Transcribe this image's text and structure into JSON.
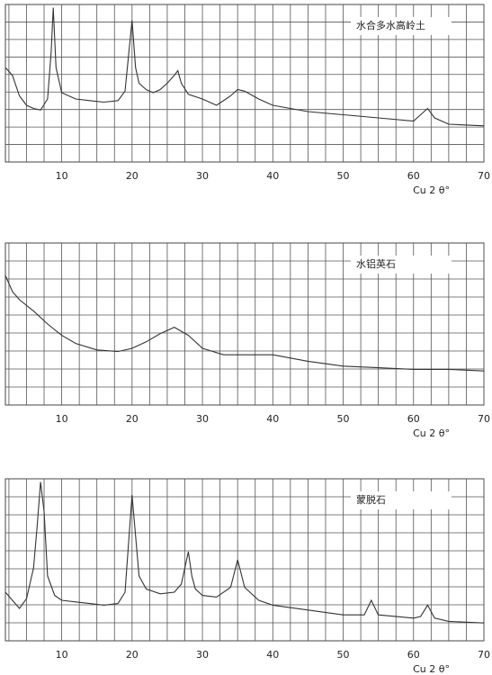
{
  "chart_data": [
    {
      "type": "line",
      "title": "水合多水高岭土",
      "xlabel": "Cu 2 θ°",
      "color": "#333333",
      "grid": true,
      "xlim": [
        2,
        70
      ],
      "ylim": [
        0,
        10
      ],
      "xticks": [
        10,
        20,
        30,
        40,
        50,
        60,
        70
      ],
      "x": [
        2,
        3,
        4,
        5,
        6,
        7,
        8,
        8.5,
        8.8,
        9.2,
        10,
        12,
        14,
        16,
        18,
        19,
        20,
        20.5,
        21,
        22,
        23,
        24,
        25,
        26,
        26.5,
        27,
        28,
        30,
        32,
        34,
        35,
        36,
        38,
        40,
        45,
        50,
        55,
        60,
        61,
        62,
        63,
        65,
        70
      ],
      "values": [
        6,
        5.5,
        4.2,
        3.6,
        3.4,
        3.3,
        4,
        7,
        9.8,
        6,
        4.4,
        4,
        3.9,
        3.8,
        3.9,
        4.5,
        9,
        6,
        5,
        4.6,
        4.4,
        4.6,
        5,
        5.5,
        5.8,
        5,
        4.3,
        4,
        3.6,
        4.2,
        4.6,
        4.5,
        4,
        3.6,
        3.2,
        3,
        2.8,
        2.6,
        3,
        3.4,
        2.8,
        2.4,
        2.3
      ]
    },
    {
      "type": "line",
      "title": "水铝英石",
      "xlabel": "Cu 2 θ°",
      "color": "#333333",
      "grid": true,
      "xlim": [
        2,
        70
      ],
      "ylim": [
        0,
        10
      ],
      "xticks": [
        10,
        20,
        30,
        40,
        50,
        60,
        70
      ],
      "x": [
        2,
        3,
        4,
        6,
        8,
        10,
        12,
        15,
        18,
        20,
        22,
        24,
        26,
        28,
        30,
        33,
        36,
        40,
        45,
        50,
        55,
        60,
        65,
        70
      ],
      "values": [
        8,
        7,
        6.5,
        5.8,
        5,
        4.3,
        3.8,
        3.4,
        3.3,
        3.5,
        3.9,
        4.4,
        4.8,
        4.3,
        3.5,
        3.1,
        3.1,
        3.1,
        2.7,
        2.4,
        2.3,
        2.2,
        2.2,
        2.1
      ]
    },
    {
      "type": "line",
      "title": "蒙脱石",
      "xlabel": "Cu 2 θ°",
      "color": "#333333",
      "grid": true,
      "xlim": [
        2,
        70
      ],
      "ylim": [
        0,
        10
      ],
      "xticks": [
        10,
        20,
        30,
        40,
        50,
        60,
        70
      ],
      "x": [
        2,
        3,
        4,
        5,
        6,
        6.5,
        7,
        7.5,
        8,
        9,
        10,
        12,
        14,
        16,
        18,
        19,
        19.5,
        20,
        20.5,
        21,
        22,
        24,
        26,
        27,
        28,
        28.5,
        29,
        30,
        32,
        34,
        35,
        36,
        38,
        40,
        45,
        50,
        53,
        54,
        55,
        60,
        61,
        62,
        63,
        65,
        70
      ],
      "values": [
        3,
        2.5,
        2,
        2.6,
        4.5,
        7,
        9.8,
        8,
        4,
        2.8,
        2.5,
        2.4,
        2.3,
        2.2,
        2.3,
        3,
        6,
        9,
        6.5,
        4,
        3.2,
        2.9,
        3,
        3.5,
        5.5,
        4,
        3.2,
        2.8,
        2.7,
        3.3,
        5,
        3.3,
        2.5,
        2.2,
        1.9,
        1.6,
        1.6,
        2.5,
        1.6,
        1.4,
        1.5,
        2.2,
        1.4,
        1.2,
        1.1
      ]
    }
  ]
}
